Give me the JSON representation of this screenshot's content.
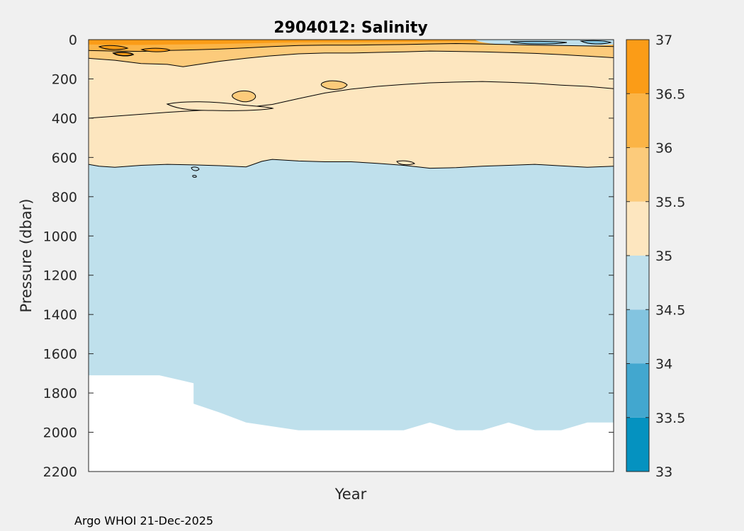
{
  "chart_data": {
    "type": "contourf",
    "title": "2904012:  Salinity",
    "xlabel": "Year",
    "ylabel": "Pressure (dbar)",
    "ylim": [
      0,
      2200
    ],
    "y_reversed": true,
    "yticks": [
      0,
      200,
      400,
      600,
      800,
      1000,
      1200,
      1400,
      1600,
      1800,
      2000,
      2200
    ],
    "xticks": [],
    "colorbar": {
      "limits": [
        33,
        37
      ],
      "tick_labels": [
        "33",
        "33.5",
        "34",
        "34.5",
        "35",
        "35.5",
        "36",
        "36.5",
        "37"
      ],
      "bins": [
        {
          "min": 33.0,
          "max": 33.5,
          "color": "#0592c0"
        },
        {
          "min": 33.5,
          "max": 34.0,
          "color": "#42a7cf"
        },
        {
          "min": 34.0,
          "max": 34.5,
          "color": "#83c4e0"
        },
        {
          "min": 34.5,
          "max": 35.0,
          "color": "#bfe0ec"
        },
        {
          "min": 35.0,
          "max": 35.5,
          "color": "#fde6bf"
        },
        {
          "min": 35.5,
          "max": 36.0,
          "color": "#fccb7b"
        },
        {
          "min": 36.0,
          "max": 36.5,
          "color": "#fbb446"
        },
        {
          "min": 36.5,
          "max": 37.0,
          "color": "#fb9c17"
        }
      ]
    },
    "regions": [
      {
        "label": "35 contour (base of 35-35.5 layer)",
        "x": [
          0,
          0.02,
          0.05,
          0.1,
          0.15,
          0.2,
          0.25,
          0.3,
          0.33,
          0.35,
          0.4,
          0.45,
          0.5,
          0.55,
          0.6,
          0.65,
          0.7,
          0.75,
          0.8,
          0.85,
          0.9,
          0.95,
          1
        ],
        "pressure": [
          635,
          645,
          650,
          640,
          635,
          638,
          642,
          648,
          620,
          610,
          618,
          622,
          622,
          630,
          640,
          655,
          652,
          645,
          640,
          635,
          643,
          650,
          645
        ]
      },
      {
        "label": "35.5 contour",
        "x": [
          0,
          0.05,
          0.1,
          0.15,
          0.2,
          0.25,
          0.3,
          0.35,
          0.4,
          0.45,
          0.5,
          0.55,
          0.6,
          0.65,
          0.7,
          0.75,
          0.8,
          0.85,
          0.9,
          0.95,
          1
        ],
        "pressure": [
          400,
          390,
          380,
          370,
          362,
          355,
          345,
          330,
          300,
          272,
          252,
          238,
          228,
          220,
          216,
          213,
          217,
          223,
          232,
          238,
          250
        ]
      },
      {
        "label": "36 contour",
        "x": [
          0,
          0.05,
          0.1,
          0.15,
          0.18,
          0.2,
          0.25,
          0.3,
          0.35,
          0.4,
          0.45,
          0.5,
          0.55,
          0.6,
          0.65,
          0.7,
          0.75,
          0.8,
          0.85,
          0.9,
          0.95,
          1
        ],
        "pressure": [
          95,
          105,
          122,
          126,
          138,
          130,
          110,
          95,
          82,
          72,
          68,
          68,
          65,
          62,
          58,
          60,
          62,
          66,
          70,
          76,
          84,
          92
        ]
      },
      {
        "label": "36.5 contour",
        "x": [
          0,
          0.05,
          0.1,
          0.15,
          0.2,
          0.25,
          0.3,
          0.35,
          0.4,
          0.45,
          0.5,
          0.55,
          0.6,
          0.65,
          0.7,
          0.75,
          0.8,
          0.85,
          0.9,
          0.95,
          1
        ],
        "pressure": [
          55,
          58,
          60,
          55,
          52,
          48,
          42,
          35,
          30,
          28,
          28,
          26,
          25,
          22,
          20,
          22,
          25,
          28,
          30,
          32,
          35
        ]
      },
      {
        "label": "data bottom (max sampled pressure)",
        "x": [
          0,
          0.135,
          0.2,
          0.2,
          0.25,
          0.3,
          0.4,
          0.45,
          0.5,
          0.6,
          0.65,
          0.7,
          0.75,
          0.8,
          0.85,
          0.9,
          0.95,
          1
        ],
        "pressure": [
          1710,
          1710,
          1750,
          1855,
          1900,
          1950,
          1990,
          1990,
          1990,
          1990,
          1950,
          1990,
          1990,
          1950,
          1990,
          1990,
          1950,
          1950
        ]
      }
    ]
  },
  "footer": {
    "credit": "Argo WHOI 21-Dec-2025"
  }
}
